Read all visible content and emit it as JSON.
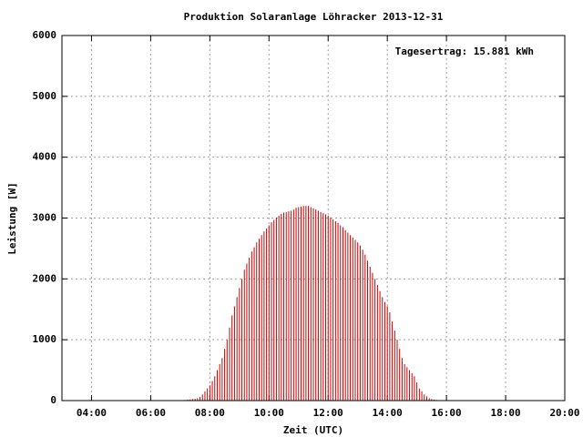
{
  "chart_data": {
    "type": "impulse",
    "title": "Produktion Solaranlage Löhracker 2013-12-31",
    "annotation": "Tagesertrag: 15.881 kWh",
    "x_label": "Zeit (UTC)",
    "y_label": "Leistung [W]",
    "color": "#cc0000",
    "grid": true,
    "xlim": [
      180,
      1200
    ],
    "xticks": [
      {
        "value": 240,
        "label": "04:00"
      },
      {
        "value": 360,
        "label": "06:00"
      },
      {
        "value": 480,
        "label": "08:00"
      },
      {
        "value": 600,
        "label": "10:00"
      },
      {
        "value": 720,
        "label": "12:00"
      },
      {
        "value": 840,
        "label": "14:00"
      },
      {
        "value": 960,
        "label": "16:00"
      },
      {
        "value": 1080,
        "label": "18:00"
      },
      {
        "value": 1200,
        "label": "20:00"
      }
    ],
    "ylim": [
      0,
      6000
    ],
    "yticks": [
      0,
      1000,
      2000,
      3000,
      4000,
      5000,
      6000
    ],
    "x": [
      420,
      425,
      430,
      435,
      440,
      445,
      450,
      455,
      460,
      465,
      470,
      475,
      480,
      485,
      490,
      495,
      500,
      505,
      510,
      515,
      520,
      525,
      530,
      535,
      540,
      545,
      550,
      555,
      560,
      565,
      570,
      575,
      580,
      585,
      590,
      595,
      600,
      605,
      610,
      615,
      620,
      625,
      630,
      635,
      640,
      645,
      650,
      655,
      660,
      665,
      670,
      675,
      680,
      685,
      690,
      695,
      700,
      705,
      710,
      715,
      720,
      725,
      730,
      735,
      740,
      745,
      750,
      755,
      760,
      765,
      770,
      775,
      780,
      785,
      790,
      795,
      800,
      805,
      810,
      815,
      820,
      825,
      830,
      835,
      840,
      845,
      850,
      855,
      860,
      865,
      870,
      875,
      880,
      885,
      890,
      895,
      900,
      905,
      910,
      915,
      920,
      925,
      930,
      935,
      940,
      945,
      950,
      955,
      960
    ],
    "values": [
      0,
      5,
      10,
      15,
      20,
      25,
      30,
      40,
      60,
      100,
      150,
      200,
      250,
      320,
      400,
      500,
      600,
      700,
      850,
      1000,
      1200,
      1400,
      1550,
      1700,
      1850,
      2000,
      2150,
      2250,
      2350,
      2450,
      2520,
      2600,
      2660,
      2720,
      2780,
      2830,
      2880,
      2930,
      2970,
      3010,
      3040,
      3070,
      3090,
      3100,
      3110,
      3120,
      3140,
      3170,
      3180,
      3190,
      3200,
      3200,
      3200,
      3180,
      3160,
      3140,
      3120,
      3100,
      3080,
      3060,
      3040,
      3010,
      2980,
      2950,
      2920,
      2880,
      2850,
      2800,
      2760,
      2720,
      2680,
      2640,
      2600,
      2550,
      2480,
      2400,
      2300,
      2200,
      2100,
      2000,
      1900,
      1800,
      1700,
      1620,
      1550,
      1450,
      1300,
      1150,
      1000,
      850,
      700,
      600,
      550,
      500,
      450,
      400,
      300,
      200,
      150,
      100,
      70,
      40,
      25,
      15,
      10,
      5,
      0,
      0,
      0
    ]
  }
}
